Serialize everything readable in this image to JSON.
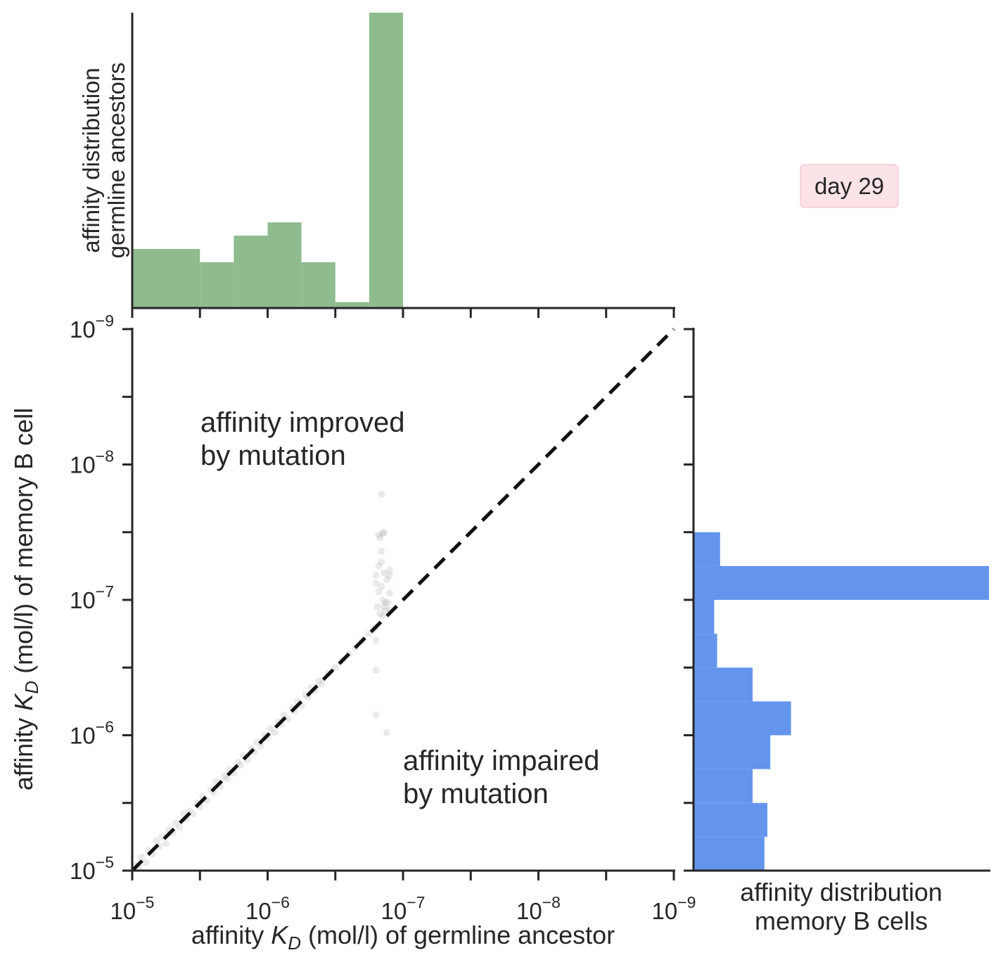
{
  "chart_data": [
    {
      "type": "bar",
      "role": "top-marginal-histogram",
      "ylabel": "affinity distribution\ngermline ancestors",
      "color": "#8fbc8f",
      "x_log_exponents_bin_edges": [
        -5,
        -5.5,
        -5.75,
        -6,
        -6.25,
        -6.5,
        -6.75,
        -7
      ],
      "relative_heights": [
        0.2,
        0.155,
        0.245,
        0.29,
        0.155,
        0.02,
        1.0
      ]
    },
    {
      "type": "scatter",
      "role": "main-joint-plot",
      "xlabel_parts": [
        "affinity ",
        "K",
        "D",
        " (mol/l) of germline ancestor"
      ],
      "ylabel_parts": [
        "affinity ",
        "K",
        "D",
        " (mol/l) of memory B cell"
      ],
      "x_axis": {
        "scale": "log",
        "reversed": true,
        "range": [
          "1e-5",
          "1e-9"
        ]
      },
      "y_axis": {
        "scale": "log",
        "reversed": true,
        "range": [
          "1e-5",
          "1e-9"
        ]
      },
      "tick_labels_x": [
        {
          "base": "10",
          "exp": "−5"
        },
        {
          "base": "10",
          "exp": "−6"
        },
        {
          "base": "10",
          "exp": "−7"
        },
        {
          "base": "10",
          "exp": "−8"
        },
        {
          "base": "10",
          "exp": "−9"
        }
      ],
      "tick_labels_y": [
        {
          "base": "10",
          "exp": "−5"
        },
        {
          "base": "10",
          "exp": "−6"
        },
        {
          "base": "10",
          "exp": "−7"
        },
        {
          "base": "10",
          "exp": "−8"
        },
        {
          "base": "10",
          "exp": "−9"
        }
      ],
      "diagonal": {
        "style": "dashed",
        "color": "#111111",
        "from": [
          "1e-5",
          "1e-5"
        ],
        "to": [
          "1e-9",
          "1e-9"
        ]
      },
      "annotations": [
        {
          "text_lines": [
            "affinity improved",
            "by mutation"
          ]
        },
        {
          "text_lines": [
            "affinity impaired",
            "by mutation"
          ]
        }
      ],
      "point_color": "#7f7f7f",
      "points_log": [
        [
          -5.02,
          -5.04
        ],
        [
          -5.05,
          -5.02
        ],
        [
          -5.07,
          -5.1
        ],
        [
          -5.1,
          -5.06
        ],
        [
          -5.12,
          -5.15
        ],
        [
          -5.15,
          -5.12
        ],
        [
          -5.18,
          -5.22
        ],
        [
          -5.2,
          -5.18
        ],
        [
          -5.22,
          -5.25
        ],
        [
          -5.25,
          -5.2
        ],
        [
          -5.27,
          -5.3
        ],
        [
          -5.3,
          -5.28
        ],
        [
          -5.32,
          -5.35
        ],
        [
          -5.35,
          -5.32
        ],
        [
          -5.38,
          -5.42
        ],
        [
          -5.4,
          -5.38
        ],
        [
          -5.42,
          -5.44
        ],
        [
          -5.45,
          -5.42
        ],
        [
          -5.48,
          -5.5
        ],
        [
          -5.5,
          -5.47
        ],
        [
          -5.52,
          -5.55
        ],
        [
          -5.55,
          -5.52
        ],
        [
          -5.58,
          -5.6
        ],
        [
          -5.6,
          -5.58
        ],
        [
          -5.62,
          -5.66
        ],
        [
          -5.65,
          -5.62
        ],
        [
          -5.68,
          -5.7
        ],
        [
          -5.7,
          -5.68
        ],
        [
          -5.72,
          -5.75
        ],
        [
          -5.75,
          -5.72
        ],
        [
          -5.78,
          -5.8
        ],
        [
          -5.8,
          -5.78
        ],
        [
          -5.82,
          -5.85
        ],
        [
          -5.85,
          -5.82
        ],
        [
          -5.88,
          -5.9
        ],
        [
          -5.9,
          -5.88
        ],
        [
          -5.92,
          -5.95
        ],
        [
          -5.95,
          -5.92
        ],
        [
          -5.98,
          -6.0
        ],
        [
          -6.0,
          -5.98
        ],
        [
          -6.02,
          -6.05
        ],
        [
          -6.05,
          -6.02
        ],
        [
          -6.08,
          -6.1
        ],
        [
          -6.1,
          -6.08
        ],
        [
          -6.12,
          -6.15
        ],
        [
          -6.15,
          -6.12
        ],
        [
          -6.18,
          -6.2
        ],
        [
          -6.2,
          -6.18
        ],
        [
          -6.22,
          -6.25
        ],
        [
          -6.25,
          -6.22
        ],
        [
          -6.28,
          -6.3
        ],
        [
          -6.3,
          -6.28
        ],
        [
          -6.32,
          -6.35
        ],
        [
          -6.35,
          -6.33
        ],
        [
          -6.38,
          -6.4
        ],
        [
          -6.4,
          -6.38
        ],
        [
          -6.45,
          -6.46
        ],
        [
          -6.5,
          -6.5
        ],
        [
          -6.55,
          -6.55
        ],
        [
          -6.6,
          -6.6
        ],
        [
          -6.65,
          -6.65
        ],
        [
          -6.7,
          -6.7
        ],
        [
          -6.75,
          -6.75
        ],
        [
          -6.78,
          -6.78
        ],
        [
          -6.8,
          -6.8
        ],
        [
          -6.84,
          -7.36
        ],
        [
          -6.84,
          -7.78
        ],
        [
          -6.82,
          -7.48
        ],
        [
          -6.86,
          -7.5
        ],
        [
          -6.83,
          -7.46
        ],
        [
          -6.85,
          -7.49
        ],
        [
          -6.8,
          -7.18
        ],
        [
          -6.82,
          -7.25
        ],
        [
          -6.84,
          -7.28
        ],
        [
          -6.86,
          -7.2
        ],
        [
          -6.8,
          -7.12
        ],
        [
          -6.82,
          -7.06
        ],
        [
          -6.84,
          -7.1
        ],
        [
          -6.85,
          -7.0
        ],
        [
          -6.87,
          -6.98
        ],
        [
          -6.88,
          -7.15
        ],
        [
          -6.9,
          -7.18
        ],
        [
          -6.9,
          -7.05
        ],
        [
          -6.9,
          -7.22
        ],
        [
          -6.9,
          -6.93
        ],
        [
          -6.8,
          -6.48
        ],
        [
          -6.8,
          -6.7
        ],
        [
          -6.8,
          -6.15
        ],
        [
          -6.88,
          -6.02
        ],
        [
          -6.87,
          -6.92
        ],
        [
          -6.81,
          -6.95
        ],
        [
          -6.83,
          -6.9
        ],
        [
          -6.85,
          -6.88
        ],
        [
          -6.86,
          -6.95
        ],
        [
          -6.89,
          -6.98
        ]
      ]
    },
    {
      "type": "bar",
      "orientation": "horizontal",
      "role": "right-marginal-histogram",
      "xlabel": "affinity distribution\nmemory B cells",
      "color": "#6495ed",
      "y_log_exponents_bin_edges": [
        -5,
        -5.25,
        -5.5,
        -5.75,
        -6,
        -6.25,
        -6.5,
        -6.75,
        -7,
        -7.25,
        -7.5
      ],
      "relative_lengths": [
        0.24,
        0.25,
        0.2,
        0.26,
        0.33,
        0.2,
        0.08,
        0.07,
        1.0,
        0.09
      ]
    }
  ],
  "legend_box": {
    "label": "day 29",
    "bg": "#fbe3e8",
    "border": "#f3ccd6"
  }
}
